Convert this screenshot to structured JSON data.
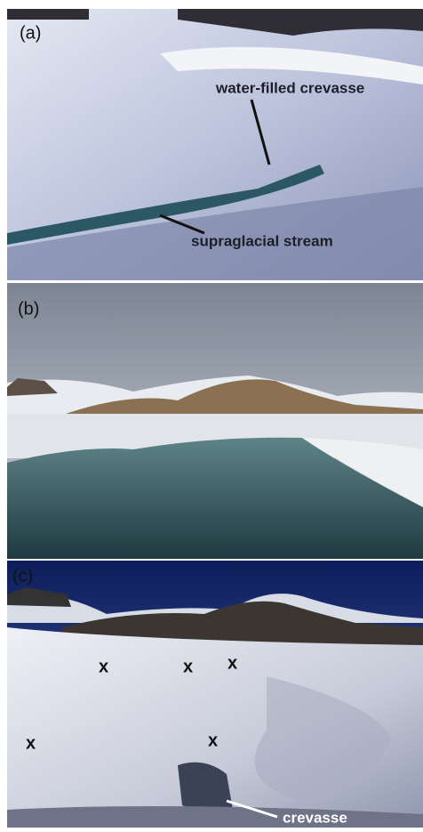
{
  "panels": [
    {
      "label": "(a)",
      "annotations": [
        "water-filled crevasse",
        "supraglacial stream"
      ]
    },
    {
      "label": "(b)"
    },
    {
      "label": "(c)",
      "markers": [
        "x",
        "x",
        "x",
        "x",
        "x"
      ],
      "annotations": [
        "crevasse"
      ]
    }
  ]
}
